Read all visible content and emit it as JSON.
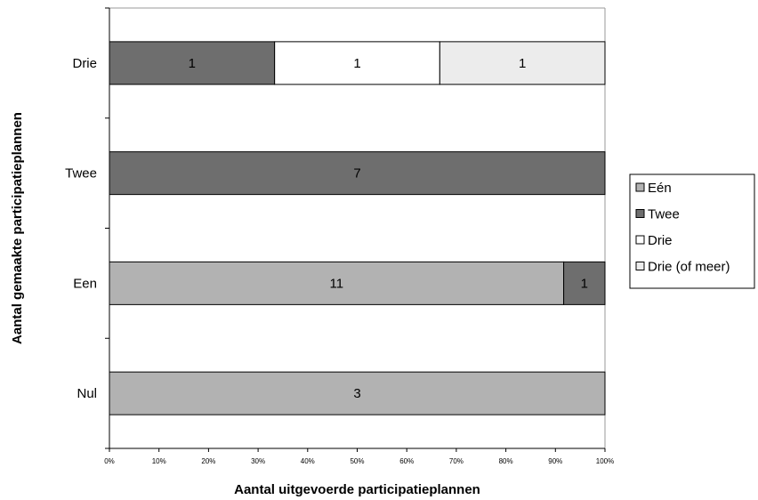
{
  "chart_data": {
    "type": "bar",
    "orientation": "horizontal",
    "stacking": "percent",
    "xlabel": "Aantal uitgevoerde participatieplannen",
    "ylabel": "Aantal gemaakte participatieplannen",
    "xlim": [
      0,
      100
    ],
    "x_ticks": [
      "0%",
      "10%",
      "20%",
      "30%",
      "40%",
      "50%",
      "60%",
      "70%",
      "80%",
      "90%",
      "100%"
    ],
    "categories": [
      "Nul",
      "Een",
      "Twee",
      "Drie"
    ],
    "series": [
      {
        "name": "Eén",
        "color": "#b2b2b2",
        "values": [
          3,
          11,
          0,
          0
        ]
      },
      {
        "name": "Twee",
        "color": "#6e6e6e",
        "values": [
          0,
          1,
          7,
          1
        ]
      },
      {
        "name": "Drie",
        "color": "#ffffff",
        "values": [
          0,
          0,
          0,
          1
        ]
      },
      {
        "name": "Drie (of meer)",
        "color": "#ececec",
        "values": [
          0,
          0,
          0,
          1
        ]
      }
    ],
    "legend_position": "right",
    "grid": false
  }
}
